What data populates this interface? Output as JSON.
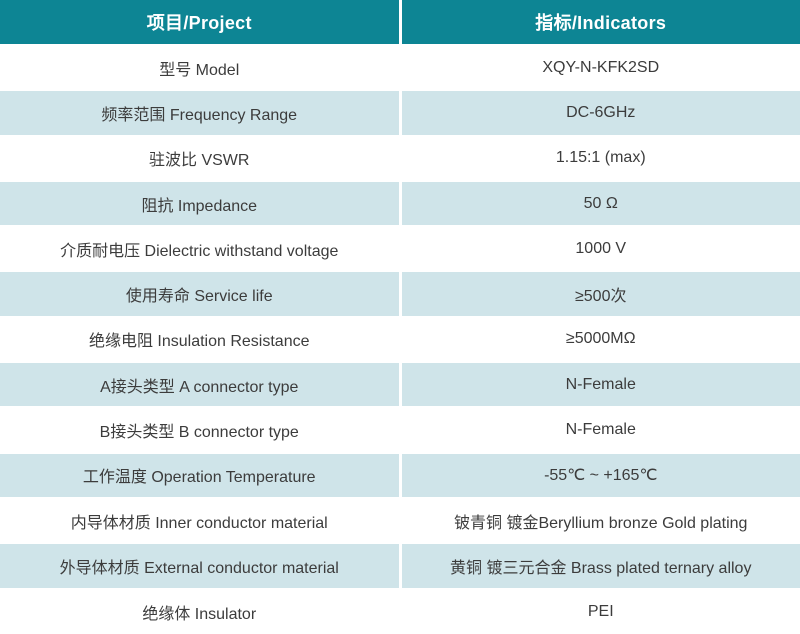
{
  "table": {
    "header": {
      "project": "项目/Project",
      "indicators": "指标/Indicators"
    },
    "rows": [
      {
        "project": "型号 Model",
        "indicator": "XQY-N-KFK2SD"
      },
      {
        "project": "频率范围 Frequency Range",
        "indicator": "DC-6GHz"
      },
      {
        "project": "驻波比 VSWR",
        "indicator": "1.15:1 (max)"
      },
      {
        "project": "阻抗 Impedance",
        "indicator": "50 Ω"
      },
      {
        "project": "介质耐电压 Dielectric withstand voltage",
        "indicator": "1000 V"
      },
      {
        "project": "使用寿命 Service life",
        "indicator": "≥500次"
      },
      {
        "project": "绝缘电阻 Insulation Resistance",
        "indicator": "≥5000MΩ"
      },
      {
        "project": "A接头类型 A connector type",
        "indicator": "N-Female"
      },
      {
        "project": "B接头类型 B connector type",
        "indicator": "N-Female"
      },
      {
        "project": "工作温度 Operation Temperature",
        "indicator": "-55℃ ~ +165℃"
      },
      {
        "project": "内导体材质 Inner conductor material",
        "indicator": "铍青铜 镀金Beryllium bronze Gold plating"
      },
      {
        "project": "外导体材质 External conductor material",
        "indicator": "黄铜 镀三元合金 Brass plated  ternary alloy"
      },
      {
        "project": "绝缘体 Insulator",
        "indicator": "PEI"
      }
    ]
  },
  "colors": {
    "header_bg": "#0d8594",
    "header_text": "#ffffff",
    "row_bg": "#ffffff",
    "row_alt_bg": "#cfe4e9",
    "body_text": "#3c3c3c",
    "divider": "#ffffff"
  }
}
